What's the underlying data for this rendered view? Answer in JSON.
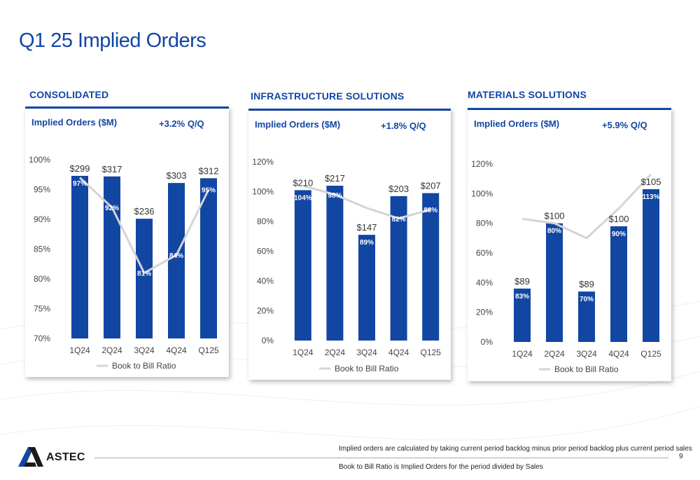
{
  "page": {
    "title": "Q1 25 Implied Orders",
    "page_number": "9",
    "brand": "ASTEC",
    "notes": [
      "Implied orders are calculated by taking current period backlog minus prior period backlog plus current period sales",
      "Book to Bill Ratio is Implied Orders for the period divided by Sales"
    ],
    "colors": {
      "accent": "#1246a3",
      "line": "#d4d4d4",
      "footer_rule": "#b5a98e"
    }
  },
  "chart_data": [
    {
      "type": "bar",
      "section": "CONSOLIDATED",
      "subtitle": "Implied Orders ($M)",
      "change": "+3.2% Q/Q",
      "categories": [
        "1Q24",
        "2Q24",
        "3Q24",
        "4Q24",
        "Q125"
      ],
      "bar_labels": [
        "$299",
        "$317",
        "$236",
        "$303",
        "$312"
      ],
      "bar_values": [
        97.3,
        97.2,
        90.1,
        96.1,
        96.9
      ],
      "ratio_labels": [
        "97%",
        "92%",
        "81%",
        "84%",
        "95%"
      ],
      "ratio_values": [
        97,
        92,
        81,
        84,
        95
      ],
      "ylim": [
        70,
        100
      ],
      "yticks": [
        "70%",
        "75%",
        "80%",
        "85%",
        "90%",
        "95%",
        "100%"
      ],
      "ytick_values": [
        70,
        75,
        80,
        85,
        90,
        95,
        100
      ],
      "legend": "Book to Bill Ratio",
      "legend_position": "bottom"
    },
    {
      "type": "bar",
      "section": "INFRASTRUCTURE SOLUTIONS",
      "subtitle": "Implied Orders ($M)",
      "change": "+1.8% Q/Q",
      "categories": [
        "1Q24",
        "2Q24",
        "3Q24",
        "4Q24",
        "Q125"
      ],
      "bar_labels": [
        "$210",
        "$217",
        "$147",
        "$203",
        "$207"
      ],
      "bar_values": [
        101,
        104,
        71,
        97,
        99
      ],
      "ratio_labels": [
        "104%",
        "98%",
        "89%",
        "82%",
        "88%"
      ],
      "ratio_values": [
        104,
        98,
        89,
        82,
        88
      ],
      "ylim": [
        0,
        120
      ],
      "yticks": [
        "0%",
        "20%",
        "40%",
        "60%",
        "80%",
        "100%",
        "120%"
      ],
      "ytick_values": [
        0,
        20,
        40,
        60,
        80,
        100,
        120
      ],
      "legend": "Book to Bill Ratio",
      "legend_position": "bottom"
    },
    {
      "type": "bar",
      "section": "MATERIALS SOLUTIONS",
      "subtitle": "Implied Orders ($M)",
      "change": "+5.9% Q/Q",
      "categories": [
        "1Q24",
        "2Q24",
        "3Q24",
        "4Q24",
        "Q125"
      ],
      "bar_labels": [
        "$89",
        "$100",
        "$89",
        "$100",
        "$105"
      ],
      "bar_values": [
        36,
        80,
        34,
        78,
        103
      ],
      "ratio_labels": [
        "83%",
        "80%",
        "70%",
        "90%",
        "113%"
      ],
      "ratio_values": [
        83,
        80,
        70,
        90,
        113
      ],
      "ylim": [
        0,
        120
      ],
      "yticks": [
        "0%",
        "20%",
        "40%",
        "60%",
        "80%",
        "100%",
        "120%"
      ],
      "ytick_values": [
        0,
        20,
        40,
        60,
        80,
        100,
        120
      ],
      "legend": "Book to Bill Ratio",
      "legend_position": "bottom"
    }
  ]
}
